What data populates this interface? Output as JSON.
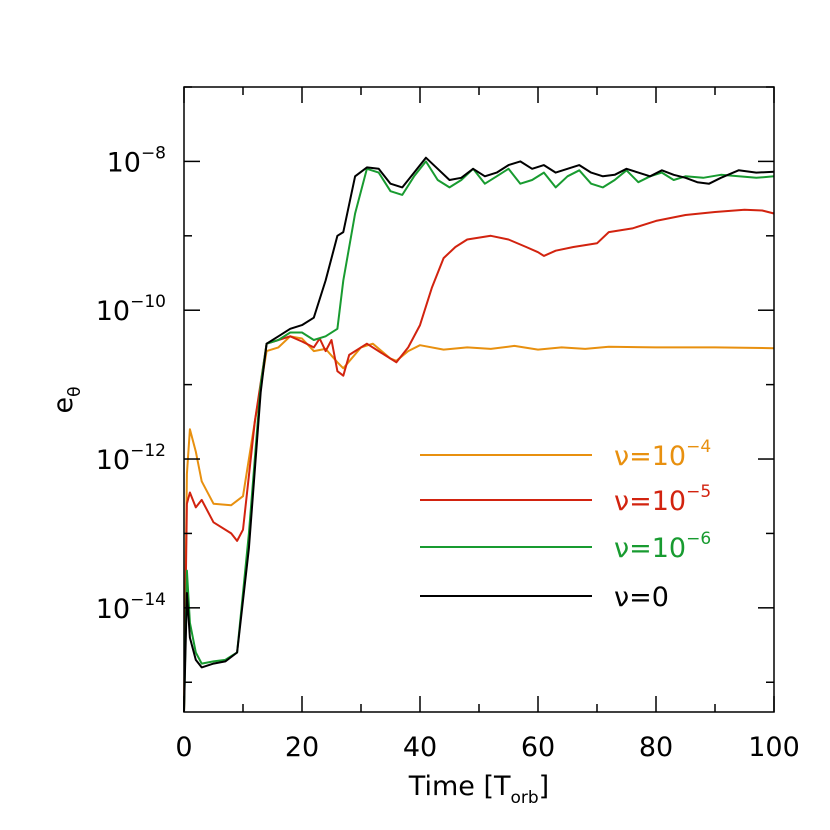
{
  "chart_data": {
    "type": "line",
    "title": "",
    "xlabel": "Time",
    "xlabel_unit_base": "T",
    "xlabel_unit_sub": "orb",
    "ylabel_base": "e",
    "ylabel_sub": "θ",
    "xlim": [
      0,
      100
    ],
    "ylim_log10": [
      -15.4,
      -7.0
    ],
    "y_scale": "log",
    "x_ticks": [
      0,
      20,
      40,
      60,
      80,
      100
    ],
    "x_tick_labels": [
      "0",
      "20",
      "40",
      "60",
      "80",
      "100"
    ],
    "y_ticks_log10": [
      -14,
      -12,
      -10,
      -8
    ],
    "y_tick_labels": [
      {
        "base": "10",
        "exp": "−14"
      },
      {
        "base": "10",
        "exp": "−12"
      },
      {
        "base": "10",
        "exp": "−10"
      },
      {
        "base": "10",
        "exp": "−8"
      }
    ],
    "legend_position": "center-right",
    "series": [
      {
        "name": "ν=10⁻⁴",
        "legend_prefix": "ν=",
        "legend_base": "10",
        "legend_exp": "−4",
        "color": "#e8900f",
        "points": [
          [
            0,
            -15.4
          ],
          [
            0.5,
            -12.2
          ],
          [
            1,
            -11.6
          ],
          [
            2,
            -11.9
          ],
          [
            3,
            -12.3
          ],
          [
            5,
            -12.6
          ],
          [
            8,
            -12.62
          ],
          [
            10,
            -12.5
          ],
          [
            12,
            -11.5
          ],
          [
            14,
            -10.55
          ],
          [
            16,
            -10.5
          ],
          [
            18,
            -10.35
          ],
          [
            20,
            -10.38
          ],
          [
            22,
            -10.55
          ],
          [
            24,
            -10.52
          ],
          [
            26,
            -10.7
          ],
          [
            27,
            -10.78
          ],
          [
            30,
            -10.5
          ],
          [
            32,
            -10.45
          ],
          [
            35,
            -10.65
          ],
          [
            36,
            -10.68
          ],
          [
            38,
            -10.55
          ],
          [
            40,
            -10.47
          ],
          [
            44,
            -10.53
          ],
          [
            48,
            -10.5
          ],
          [
            52,
            -10.52
          ],
          [
            56,
            -10.48
          ],
          [
            60,
            -10.53
          ],
          [
            64,
            -10.5
          ],
          [
            68,
            -10.52
          ],
          [
            72,
            -10.49
          ],
          [
            80,
            -10.5
          ],
          [
            90,
            -10.5
          ],
          [
            100,
            -10.51
          ]
        ]
      },
      {
        "name": "ν=10⁻⁵",
        "legend_prefix": "ν=",
        "legend_base": "10",
        "legend_exp": "−5",
        "color": "#d2230f",
        "points": [
          [
            0,
            -15.4
          ],
          [
            0.5,
            -12.6
          ],
          [
            1,
            -12.45
          ],
          [
            2,
            -12.65
          ],
          [
            3,
            -12.55
          ],
          [
            5,
            -12.85
          ],
          [
            8,
            -13.0
          ],
          [
            9,
            -13.1
          ],
          [
            10,
            -12.95
          ],
          [
            12,
            -11.5
          ],
          [
            14,
            -10.45
          ],
          [
            16,
            -10.4
          ],
          [
            18,
            -10.35
          ],
          [
            20,
            -10.42
          ],
          [
            22,
            -10.5
          ],
          [
            23,
            -10.38
          ],
          [
            24,
            -10.55
          ],
          [
            25,
            -10.4
          ],
          [
            26,
            -10.82
          ],
          [
            27,
            -10.88
          ],
          [
            28,
            -10.6
          ],
          [
            31,
            -10.45
          ],
          [
            34,
            -10.6
          ],
          [
            36,
            -10.7
          ],
          [
            38,
            -10.5
          ],
          [
            40,
            -10.2
          ],
          [
            42,
            -9.7
          ],
          [
            44,
            -9.3
          ],
          [
            46,
            -9.15
          ],
          [
            48,
            -9.05
          ],
          [
            52,
            -9.0
          ],
          [
            55,
            -9.05
          ],
          [
            58,
            -9.15
          ],
          [
            60,
            -9.22
          ],
          [
            61,
            -9.27
          ],
          [
            63,
            -9.2
          ],
          [
            66,
            -9.15
          ],
          [
            70,
            -9.1
          ],
          [
            72,
            -8.95
          ],
          [
            76,
            -8.9
          ],
          [
            80,
            -8.8
          ],
          [
            85,
            -8.72
          ],
          [
            90,
            -8.68
          ],
          [
            95,
            -8.65
          ],
          [
            98,
            -8.66
          ],
          [
            100,
            -8.7
          ]
        ]
      },
      {
        "name": "ν=10⁻⁶",
        "legend_prefix": "ν=",
        "legend_base": "10",
        "legend_exp": "−6",
        "color": "#189b30",
        "points": [
          [
            0,
            -15.4
          ],
          [
            0.5,
            -13.5
          ],
          [
            1,
            -14.2
          ],
          [
            2,
            -14.6
          ],
          [
            3,
            -14.75
          ],
          [
            5,
            -14.72
          ],
          [
            7,
            -14.7
          ],
          [
            9,
            -14.6
          ],
          [
            11,
            -13.0
          ],
          [
            13,
            -11.0
          ],
          [
            14,
            -10.45
          ],
          [
            16,
            -10.4
          ],
          [
            18,
            -10.3
          ],
          [
            20,
            -10.3
          ],
          [
            22,
            -10.4
          ],
          [
            24,
            -10.35
          ],
          [
            26,
            -10.25
          ],
          [
            27,
            -9.6
          ],
          [
            29,
            -8.7
          ],
          [
            31,
            -8.1
          ],
          [
            33,
            -8.15
          ],
          [
            35,
            -8.4
          ],
          [
            37,
            -8.45
          ],
          [
            39,
            -8.2
          ],
          [
            41,
            -8.0
          ],
          [
            43,
            -8.25
          ],
          [
            45,
            -8.35
          ],
          [
            47,
            -8.25
          ],
          [
            49,
            -8.1
          ],
          [
            51,
            -8.3
          ],
          [
            53,
            -8.2
          ],
          [
            55,
            -8.1
          ],
          [
            57,
            -8.3
          ],
          [
            59,
            -8.25
          ],
          [
            61,
            -8.15
          ],
          [
            63,
            -8.35
          ],
          [
            65,
            -8.2
          ],
          [
            67,
            -8.12
          ],
          [
            69,
            -8.3
          ],
          [
            71,
            -8.35
          ],
          [
            73,
            -8.25
          ],
          [
            75,
            -8.12
          ],
          [
            77,
            -8.28
          ],
          [
            79,
            -8.2
          ],
          [
            81,
            -8.15
          ],
          [
            83,
            -8.25
          ],
          [
            85,
            -8.2
          ],
          [
            88,
            -8.22
          ],
          [
            91,
            -8.18
          ],
          [
            94,
            -8.2
          ],
          [
            97,
            -8.22
          ],
          [
            100,
            -8.2
          ]
        ]
      },
      {
        "name": "ν=0",
        "legend_prefix": "ν=0",
        "legend_base": "",
        "legend_exp": "",
        "color": "#000000",
        "points": [
          [
            0,
            -15.4
          ],
          [
            0.5,
            -13.8
          ],
          [
            1,
            -14.4
          ],
          [
            2,
            -14.7
          ],
          [
            3,
            -14.8
          ],
          [
            5,
            -14.75
          ],
          [
            7,
            -14.72
          ],
          [
            9,
            -14.6
          ],
          [
            11,
            -13.2
          ],
          [
            13,
            -11.1
          ],
          [
            14,
            -10.45
          ],
          [
            16,
            -10.35
          ],
          [
            18,
            -10.25
          ],
          [
            20,
            -10.2
          ],
          [
            22,
            -10.1
          ],
          [
            24,
            -9.6
          ],
          [
            26,
            -9.0
          ],
          [
            27,
            -8.95
          ],
          [
            29,
            -8.2
          ],
          [
            31,
            -8.08
          ],
          [
            33,
            -8.1
          ],
          [
            35,
            -8.3
          ],
          [
            37,
            -8.35
          ],
          [
            39,
            -8.15
          ],
          [
            41,
            -7.95
          ],
          [
            43,
            -8.1
          ],
          [
            45,
            -8.25
          ],
          [
            47,
            -8.22
          ],
          [
            49,
            -8.1
          ],
          [
            51,
            -8.2
          ],
          [
            53,
            -8.15
          ],
          [
            55,
            -8.05
          ],
          [
            57,
            -8.0
          ],
          [
            59,
            -8.1
          ],
          [
            61,
            -8.05
          ],
          [
            63,
            -8.15
          ],
          [
            65,
            -8.1
          ],
          [
            67,
            -8.05
          ],
          [
            69,
            -8.15
          ],
          [
            71,
            -8.2
          ],
          [
            73,
            -8.18
          ],
          [
            75,
            -8.1
          ],
          [
            77,
            -8.15
          ],
          [
            79,
            -8.2
          ],
          [
            81,
            -8.12
          ],
          [
            83,
            -8.18
          ],
          [
            85,
            -8.22
          ],
          [
            87,
            -8.28
          ],
          [
            89,
            -8.3
          ],
          [
            91,
            -8.22
          ],
          [
            94,
            -8.12
          ],
          [
            97,
            -8.15
          ],
          [
            100,
            -8.14
          ]
        ]
      }
    ]
  }
}
